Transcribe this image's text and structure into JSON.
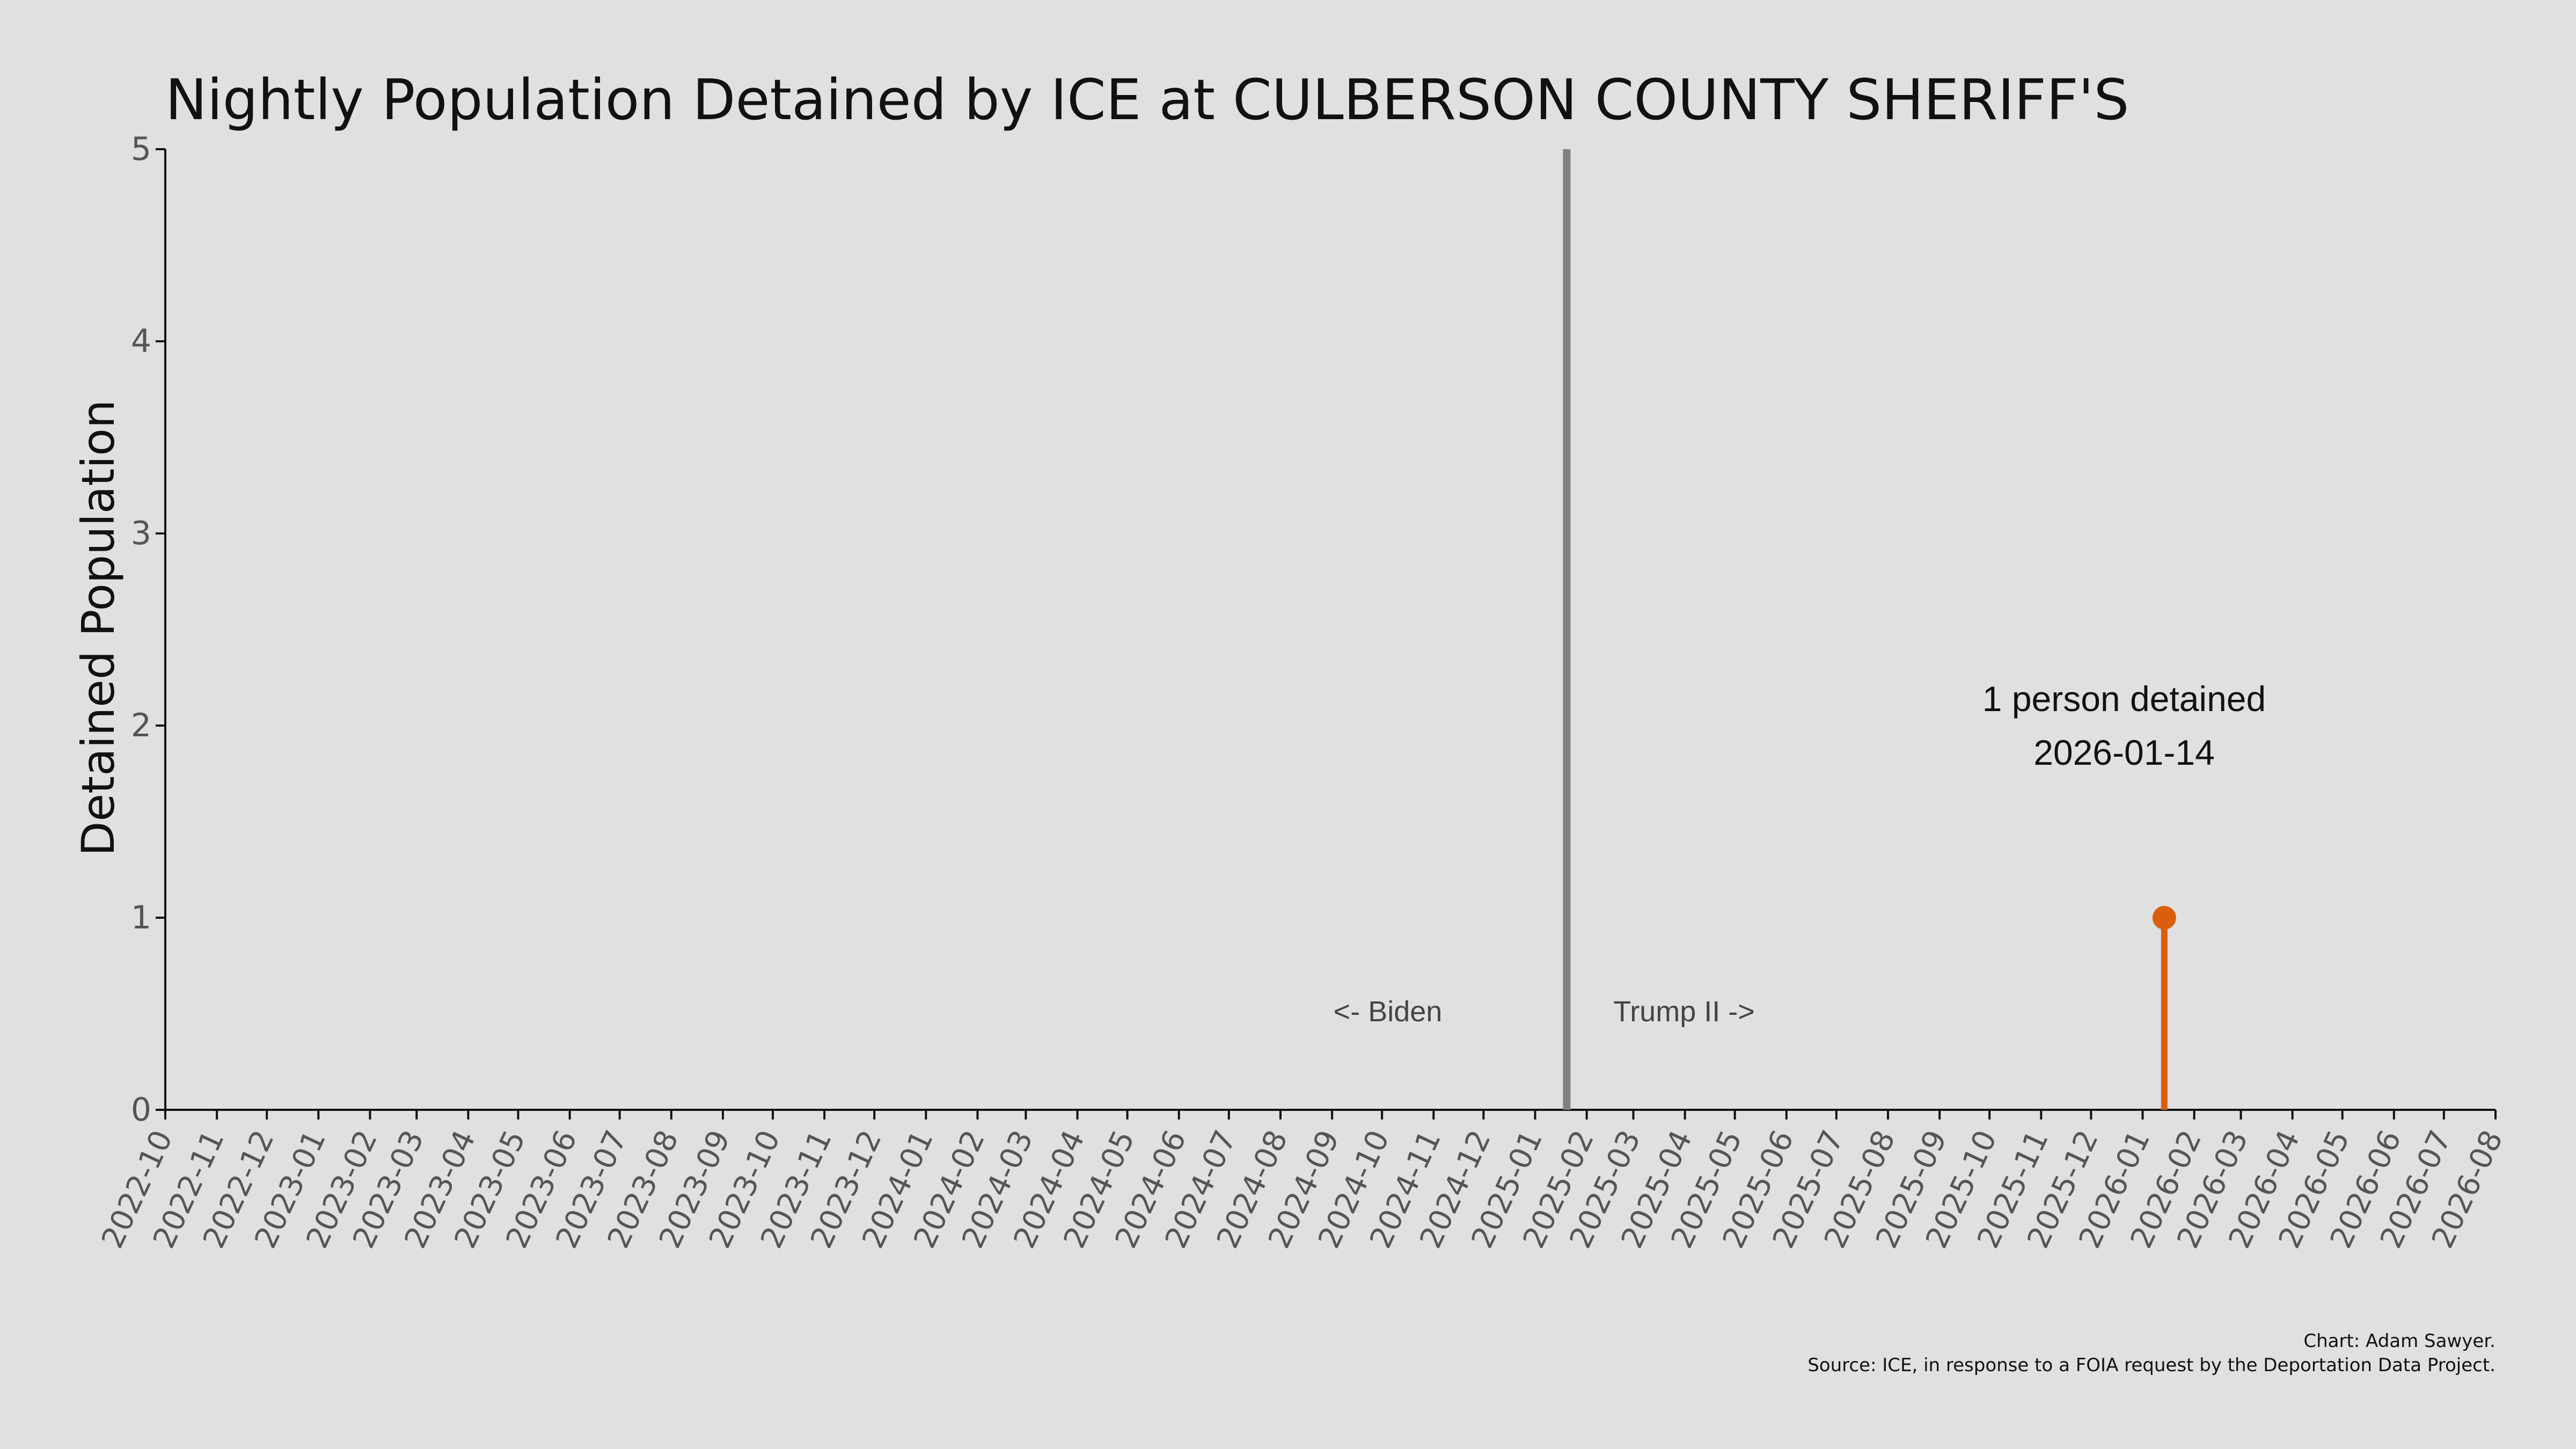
{
  "chart_data": {
    "type": "line",
    "title": "Nightly Population Detained by ICE at CULBERSON COUNTY SHERIFF'S",
    "xlabel": "",
    "ylabel": "Detained Population",
    "ylim": [
      0,
      5
    ],
    "yticks": [
      "0",
      "1",
      "2",
      "3",
      "4",
      "5"
    ],
    "xlim": [
      "2022-10-01",
      "2026-08-01"
    ],
    "xticks": [
      "2022-10",
      "2022-11",
      "2022-12",
      "2023-01",
      "2023-02",
      "2023-03",
      "2023-04",
      "2023-05",
      "2023-06",
      "2023-07",
      "2023-08",
      "2023-09",
      "2023-10",
      "2023-11",
      "2023-12",
      "2024-01",
      "2024-02",
      "2024-03",
      "2024-04",
      "2024-05",
      "2024-06",
      "2024-07",
      "2024-08",
      "2024-09",
      "2024-10",
      "2024-11",
      "2024-12",
      "2025-01",
      "2025-02",
      "2025-03",
      "2025-04",
      "2025-05",
      "2025-06",
      "2025-07",
      "2025-08",
      "2025-09",
      "2025-10",
      "2025-11",
      "2025-12",
      "2026-01",
      "2026-02",
      "2026-03",
      "2026-04",
      "2026-05",
      "2026-06",
      "2026-07",
      "2026-08"
    ],
    "grid": false,
    "series": [
      {
        "points": [
          {
            "x": "2026-01-14",
            "y": 1
          }
        ],
        "color": "#d95f0e",
        "style": "stem"
      }
    ],
    "reference_line": {
      "x": "2025-01-20",
      "color": "#808080"
    },
    "annotations": {
      "left_era": "<- Biden",
      "right_era": "Trump II ->",
      "point_label_line1": "1 person detained",
      "point_label_line2": "2026-01-14"
    },
    "credits": {
      "line1": "Chart: Adam Sawyer.",
      "line2": "Source: ICE, in response to a FOIA request by the Deportation Data Project."
    }
  }
}
